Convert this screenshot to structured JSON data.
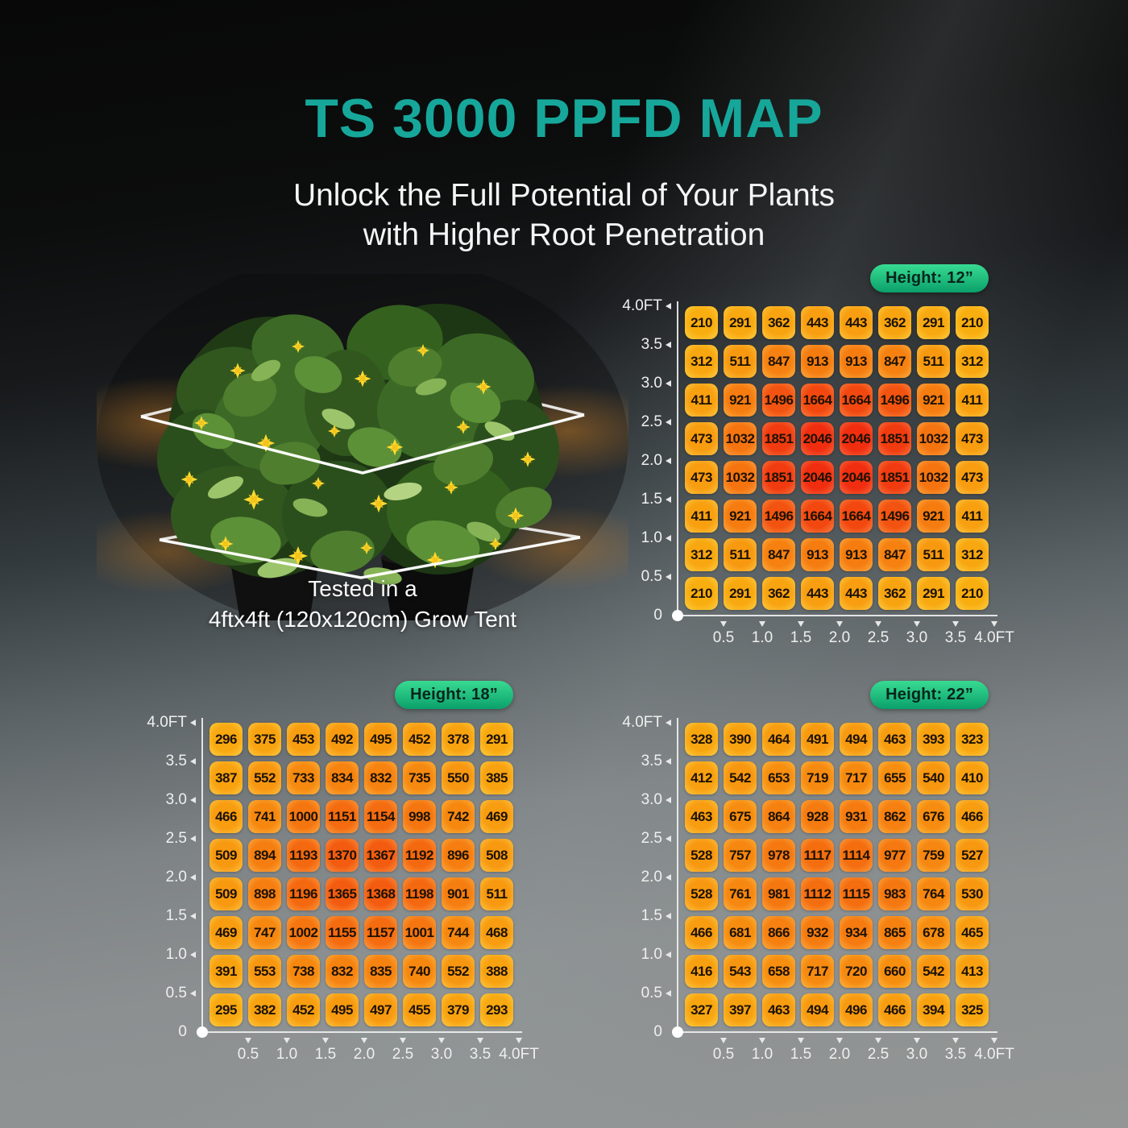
{
  "header": {
    "title": "TS 3000 PPFD MAP",
    "subtitle_line1": "Unlock the Full Potential of Your Plants",
    "subtitle_line2": "with Higher Root Penetration"
  },
  "plant_figure": {
    "caption_line1": "Tested in a",
    "caption_line2": "4ftx4ft (120x120cm) Grow Tent"
  },
  "axis": {
    "y_labels": [
      "4.0FT",
      "3.5",
      "3.0",
      "2.5",
      "2.0",
      "1.5",
      "1.0",
      "0.5",
      "0"
    ],
    "x_labels": [
      "0.5",
      "1.0",
      "1.5",
      "2.0",
      "2.5",
      "3.0",
      "3.5",
      "4.0FT"
    ]
  },
  "chart_data": [
    {
      "type": "heatmap",
      "title": "Height: 12”",
      "x_tick_labels": [
        "0.5",
        "1.0",
        "1.5",
        "2.0",
        "2.5",
        "3.0",
        "3.5",
        "4.0FT"
      ],
      "y_tick_labels": [
        "4.0FT",
        "3.5",
        "3.0",
        "2.5",
        "2.0",
        "1.5",
        "1.0",
        "0.5",
        "0"
      ],
      "values": [
        [
          210,
          291,
          362,
          443,
          443,
          362,
          291,
          210
        ],
        [
          312,
          511,
          847,
          913,
          913,
          847,
          511,
          312
        ],
        [
          411,
          921,
          1496,
          1664,
          1664,
          1496,
          921,
          411
        ],
        [
          473,
          1032,
          1851,
          2046,
          2046,
          1851,
          1032,
          473
        ],
        [
          473,
          1032,
          1851,
          2046,
          2046,
          1851,
          1032,
          473
        ],
        [
          411,
          921,
          1496,
          1664,
          1664,
          1496,
          921,
          411
        ],
        [
          312,
          511,
          847,
          913,
          913,
          847,
          511,
          312
        ],
        [
          210,
          291,
          362,
          443,
          443,
          362,
          291,
          210
        ]
      ]
    },
    {
      "type": "heatmap",
      "title": "Height: 18”",
      "x_tick_labels": [
        "0.5",
        "1.0",
        "1.5",
        "2.0",
        "2.5",
        "3.0",
        "3.5",
        "4.0FT"
      ],
      "y_tick_labels": [
        "4.0FT",
        "3.5",
        "3.0",
        "2.5",
        "2.0",
        "1.5",
        "1.0",
        "0.5",
        "0"
      ],
      "values": [
        [
          296,
          375,
          453,
          492,
          495,
          452,
          378,
          291
        ],
        [
          387,
          552,
          733,
          834,
          832,
          735,
          550,
          385
        ],
        [
          466,
          741,
          1000,
          1151,
          1154,
          998,
          742,
          469
        ],
        [
          509,
          894,
          1193,
          1370,
          1367,
          1192,
          896,
          508
        ],
        [
          509,
          898,
          1196,
          1365,
          1368,
          1198,
          901,
          511
        ],
        [
          469,
          747,
          1002,
          1155,
          1157,
          1001,
          744,
          468
        ],
        [
          391,
          553,
          738,
          832,
          835,
          740,
          552,
          388
        ],
        [
          295,
          382,
          452,
          495,
          497,
          455,
          379,
          293
        ]
      ]
    },
    {
      "type": "heatmap",
      "title": "Height: 22”",
      "x_tick_labels": [
        "0.5",
        "1.0",
        "1.5",
        "2.0",
        "2.5",
        "3.0",
        "3.5",
        "4.0FT"
      ],
      "y_tick_labels": [
        "4.0FT",
        "3.5",
        "3.0",
        "2.5",
        "2.0",
        "1.5",
        "1.0",
        "0.5",
        "0"
      ],
      "values": [
        [
          328,
          390,
          464,
          491,
          494,
          463,
          393,
          323
        ],
        [
          412,
          542,
          653,
          719,
          717,
          655,
          540,
          410
        ],
        [
          463,
          675,
          864,
          928,
          931,
          862,
          676,
          466
        ],
        [
          528,
          757,
          978,
          1117,
          1114,
          977,
          759,
          527
        ],
        [
          528,
          761,
          981,
          1112,
          1115,
          983,
          764,
          530
        ],
        [
          466,
          681,
          866,
          932,
          934,
          865,
          678,
          465
        ],
        [
          416,
          543,
          658,
          717,
          720,
          660,
          542,
          413
        ],
        [
          327,
          397,
          463,
          494,
          496,
          466,
          394,
          325
        ]
      ]
    }
  ],
  "colors": {
    "title_teal": "#16a79a",
    "subtitle_white": "#f5f5f5",
    "badge_gradient_top": "#38db92",
    "badge_gradient_bottom": "#0ba06b",
    "badge_text": "#06251c",
    "axis_line": "#eeeeee",
    "axis_label": "#efefef",
    "cell_text": "#1c1202",
    "heat_scale": {
      "min_value": 200,
      "max_value": 2050,
      "start_hsl": [
        41,
        95,
        52
      ],
      "end_hsl": [
        8,
        88,
        50
      ]
    },
    "background_top": "#0a0a0a",
    "background_bottom": "#939695"
  }
}
